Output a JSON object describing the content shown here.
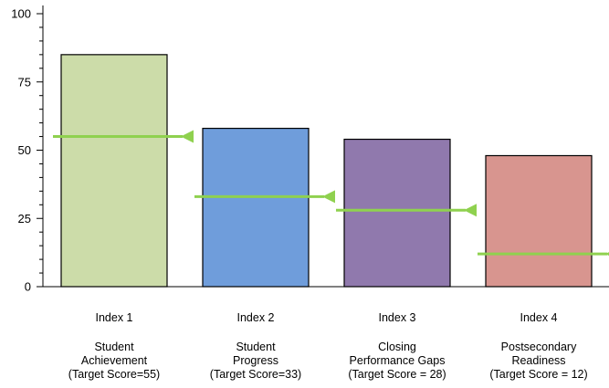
{
  "chart_data": {
    "type": "bar",
    "categories": [
      "Index 1",
      "Index 2",
      "Index 3",
      "Index 4"
    ],
    "descriptions": [
      [
        "Student",
        "Achievement",
        "(Target Score=55)"
      ],
      [
        "Student",
        "Progress",
        "(Target Score=33)"
      ],
      [
        "Closing",
        "Performance Gaps",
        "(Target Score = 28)"
      ],
      [
        "Postsecondary",
        "Readiness",
        "(Target Score = 12)"
      ]
    ],
    "values": [
      85,
      58,
      54,
      48
    ],
    "targets": [
      55,
      33,
      28,
      12
    ],
    "bar_colors": [
      "#ccdca9",
      "#6f9ddb",
      "#9079ad",
      "#d8958f"
    ],
    "target_color": "#8fd14f",
    "ylim": [
      0,
      100
    ],
    "yticks": [
      0,
      25,
      50,
      75,
      100
    ],
    "title": "",
    "xlabel": "",
    "ylabel": ""
  }
}
